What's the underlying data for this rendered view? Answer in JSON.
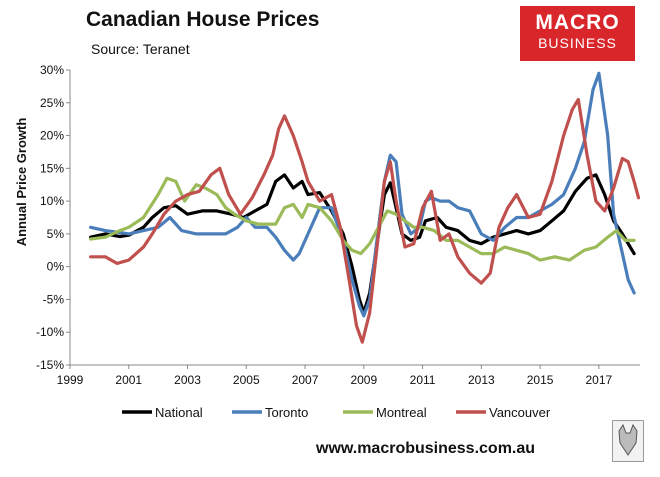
{
  "header": {
    "title": "Canadian House Prices",
    "source": "Source: Teranet"
  },
  "logo": {
    "line1": "MACRO",
    "line2": "BUSINESS",
    "color": "#d9262b"
  },
  "footer": {
    "url": "www.macrobusiness.com.au"
  },
  "chart_data": {
    "type": "line",
    "title": "Canadian House Prices",
    "xlabel": "",
    "ylabel": "Annual Price Growth",
    "xlim": [
      1999,
      2018.4
    ],
    "ylim": [
      -15,
      30
    ],
    "x_ticks": [
      "1999",
      "2001",
      "2003",
      "2005",
      "2007",
      "2009",
      "2011",
      "2013",
      "2015",
      "2017"
    ],
    "y_ticks": [
      "-15%",
      "-10%",
      "-5%",
      "0%",
      "5%",
      "10%",
      "15%",
      "20%",
      "25%",
      "30%"
    ],
    "grid": false,
    "legend_position": "bottom",
    "series": [
      {
        "name": "National",
        "color": "#000000",
        "points": [
          [
            1999.7,
            4.5
          ],
          [
            2000.2,
            5
          ],
          [
            2000.7,
            4.6
          ],
          [
            2001.0,
            4.8
          ],
          [
            2001.5,
            6
          ],
          [
            2001.8,
            7.5
          ],
          [
            2002.2,
            9
          ],
          [
            2002.6,
            9.3
          ],
          [
            2003.0,
            8
          ],
          [
            2003.5,
            8.5
          ],
          [
            2004.0,
            8.5
          ],
          [
            2004.5,
            8
          ],
          [
            2004.9,
            7.5
          ],
          [
            2005.3,
            8.5
          ],
          [
            2005.7,
            9.5
          ],
          [
            2006.0,
            13
          ],
          [
            2006.3,
            14
          ],
          [
            2006.6,
            12
          ],
          [
            2006.9,
            13
          ],
          [
            2007.1,
            11
          ],
          [
            2007.5,
            11.3
          ],
          [
            2007.9,
            8.5
          ],
          [
            2008.3,
            5
          ],
          [
            2008.6,
            0
          ],
          [
            2008.85,
            -5
          ],
          [
            2009.0,
            -7
          ],
          [
            2009.2,
            -4
          ],
          [
            2009.5,
            5
          ],
          [
            2009.7,
            11
          ],
          [
            2009.9,
            12.8
          ],
          [
            2010.1,
            9
          ],
          [
            2010.3,
            5
          ],
          [
            2010.6,
            4
          ],
          [
            2010.9,
            4.5
          ],
          [
            2011.1,
            7
          ],
          [
            2011.5,
            7.5
          ],
          [
            2011.8,
            6
          ],
          [
            2012.2,
            5.5
          ],
          [
            2012.6,
            4
          ],
          [
            2013.0,
            3.5
          ],
          [
            2013.4,
            4.5
          ],
          [
            2013.8,
            5
          ],
          [
            2014.2,
            5.5
          ],
          [
            2014.6,
            5
          ],
          [
            2015.0,
            5.5
          ],
          [
            2015.4,
            7
          ],
          [
            2015.8,
            8.5
          ],
          [
            2016.2,
            11.5
          ],
          [
            2016.6,
            13.5
          ],
          [
            2016.9,
            14
          ],
          [
            2017.2,
            11
          ],
          [
            2017.5,
            7
          ],
          [
            2017.8,
            5
          ],
          [
            2018.0,
            3.5
          ],
          [
            2018.2,
            2
          ]
        ]
      },
      {
        "name": "Toronto",
        "color": "#4a7ebb",
        "points": [
          [
            1999.7,
            6
          ],
          [
            2000.2,
            5.5
          ],
          [
            2000.7,
            5.2
          ],
          [
            2001.0,
            5
          ],
          [
            2001.5,
            5.5
          ],
          [
            2002.0,
            6
          ],
          [
            2002.4,
            7.5
          ],
          [
            2002.8,
            5.5
          ],
          [
            2003.3,
            5
          ],
          [
            2003.8,
            5
          ],
          [
            2004.3,
            5
          ],
          [
            2004.7,
            6
          ],
          [
            2005.0,
            7.5
          ],
          [
            2005.3,
            6
          ],
          [
            2005.7,
            6
          ],
          [
            2006.0,
            4.5
          ],
          [
            2006.3,
            2.5
          ],
          [
            2006.6,
            1
          ],
          [
            2006.8,
            2
          ],
          [
            2007.1,
            5
          ],
          [
            2007.5,
            9
          ],
          [
            2007.9,
            9
          ],
          [
            2008.3,
            4
          ],
          [
            2008.6,
            -2
          ],
          [
            2008.85,
            -6
          ],
          [
            2009.0,
            -7.5
          ],
          [
            2009.2,
            -5
          ],
          [
            2009.5,
            6
          ],
          [
            2009.7,
            13
          ],
          [
            2009.9,
            17
          ],
          [
            2010.1,
            16
          ],
          [
            2010.3,
            8
          ],
          [
            2010.6,
            5
          ],
          [
            2010.9,
            6
          ],
          [
            2011.1,
            10
          ],
          [
            2011.3,
            10.5
          ],
          [
            2011.6,
            10
          ],
          [
            2011.9,
            10
          ],
          [
            2012.2,
            9
          ],
          [
            2012.6,
            8.5
          ],
          [
            2013.0,
            5
          ],
          [
            2013.4,
            4
          ],
          [
            2013.8,
            6
          ],
          [
            2014.2,
            7.5
          ],
          [
            2014.6,
            7.5
          ],
          [
            2015.0,
            8.5
          ],
          [
            2015.4,
            9.5
          ],
          [
            2015.8,
            11
          ],
          [
            2016.2,
            15
          ],
          [
            2016.5,
            19
          ],
          [
            2016.8,
            27
          ],
          [
            2017.0,
            29.5
          ],
          [
            2017.3,
            20
          ],
          [
            2017.5,
            8
          ],
          [
            2017.8,
            2
          ],
          [
            2018.0,
            -2
          ],
          [
            2018.2,
            -4
          ]
        ]
      },
      {
        "name": "Montreal",
        "color": "#9bbb59",
        "points": [
          [
            1999.7,
            4.2
          ],
          [
            2000.2,
            4.5
          ],
          [
            2000.7,
            5.5
          ],
          [
            2001.0,
            6
          ],
          [
            2001.5,
            7.5
          ],
          [
            2002.0,
            11
          ],
          [
            2002.3,
            13.5
          ],
          [
            2002.6,
            13
          ],
          [
            2002.9,
            10
          ],
          [
            2003.3,
            12.5
          ],
          [
            2003.6,
            12
          ],
          [
            2004.0,
            11
          ],
          [
            2004.3,
            9
          ],
          [
            2004.6,
            8
          ],
          [
            2005.0,
            7
          ],
          [
            2005.4,
            6.5
          ],
          [
            2005.8,
            6.5
          ],
          [
            2006.0,
            6.5
          ],
          [
            2006.3,
            9
          ],
          [
            2006.6,
            9.5
          ],
          [
            2006.9,
            7.5
          ],
          [
            2007.1,
            9.5
          ],
          [
            2007.5,
            9
          ],
          [
            2007.9,
            7
          ],
          [
            2008.3,
            4
          ],
          [
            2008.6,
            2.5
          ],
          [
            2008.9,
            2
          ],
          [
            2009.2,
            3.5
          ],
          [
            2009.5,
            6
          ],
          [
            2009.8,
            8.5
          ],
          [
            2010.1,
            8
          ],
          [
            2010.4,
            7
          ],
          [
            2010.7,
            6
          ],
          [
            2011.0,
            6
          ],
          [
            2011.4,
            5.5
          ],
          [
            2011.8,
            4
          ],
          [
            2012.2,
            4
          ],
          [
            2012.6,
            3
          ],
          [
            2013.0,
            2
          ],
          [
            2013.4,
            2
          ],
          [
            2013.8,
            3
          ],
          [
            2014.2,
            2.5
          ],
          [
            2014.6,
            2
          ],
          [
            2015.0,
            1
          ],
          [
            2015.5,
            1.5
          ],
          [
            2016.0,
            1
          ],
          [
            2016.5,
            2.5
          ],
          [
            2016.9,
            3
          ],
          [
            2017.3,
            4.5
          ],
          [
            2017.6,
            5.5
          ],
          [
            2017.9,
            4
          ],
          [
            2018.2,
            4
          ]
        ]
      },
      {
        "name": "Vancouver",
        "color": "#c0504d",
        "points": [
          [
            1999.7,
            1.5
          ],
          [
            2000.2,
            1.5
          ],
          [
            2000.6,
            0.5
          ],
          [
            2001.0,
            1
          ],
          [
            2001.5,
            3
          ],
          [
            2001.8,
            5
          ],
          [
            2002.2,
            8
          ],
          [
            2002.6,
            10
          ],
          [
            2003.0,
            11
          ],
          [
            2003.4,
            11.5
          ],
          [
            2003.8,
            14
          ],
          [
            2004.1,
            15
          ],
          [
            2004.4,
            11
          ],
          [
            2004.8,
            8
          ],
          [
            2005.2,
            10.5
          ],
          [
            2005.6,
            14
          ],
          [
            2005.9,
            17
          ],
          [
            2006.1,
            21
          ],
          [
            2006.3,
            23
          ],
          [
            2006.6,
            20
          ],
          [
            2006.9,
            16
          ],
          [
            2007.1,
            13
          ],
          [
            2007.5,
            10
          ],
          [
            2007.9,
            11
          ],
          [
            2008.2,
            6
          ],
          [
            2008.5,
            -2
          ],
          [
            2008.75,
            -9
          ],
          [
            2008.95,
            -11.5
          ],
          [
            2009.2,
            -7
          ],
          [
            2009.5,
            5
          ],
          [
            2009.7,
            13
          ],
          [
            2009.9,
            16
          ],
          [
            2010.1,
            10
          ],
          [
            2010.4,
            3
          ],
          [
            2010.7,
            3.5
          ],
          [
            2011.0,
            9
          ],
          [
            2011.3,
            11.5
          ],
          [
            2011.6,
            4
          ],
          [
            2011.9,
            5
          ],
          [
            2012.2,
            1.5
          ],
          [
            2012.6,
            -1
          ],
          [
            2013.0,
            -2.5
          ],
          [
            2013.3,
            -1
          ],
          [
            2013.6,
            6
          ],
          [
            2013.9,
            9
          ],
          [
            2014.2,
            11
          ],
          [
            2014.6,
            7.5
          ],
          [
            2015.0,
            8
          ],
          [
            2015.4,
            13
          ],
          [
            2015.8,
            20
          ],
          [
            2016.1,
            24
          ],
          [
            2016.3,
            25.5
          ],
          [
            2016.6,
            17
          ],
          [
            2016.9,
            10
          ],
          [
            2017.2,
            8.5
          ],
          [
            2017.5,
            12
          ],
          [
            2017.8,
            16.5
          ],
          [
            2018.0,
            16
          ],
          [
            2018.2,
            13
          ],
          [
            2018.35,
            10.5
          ]
        ]
      }
    ]
  }
}
